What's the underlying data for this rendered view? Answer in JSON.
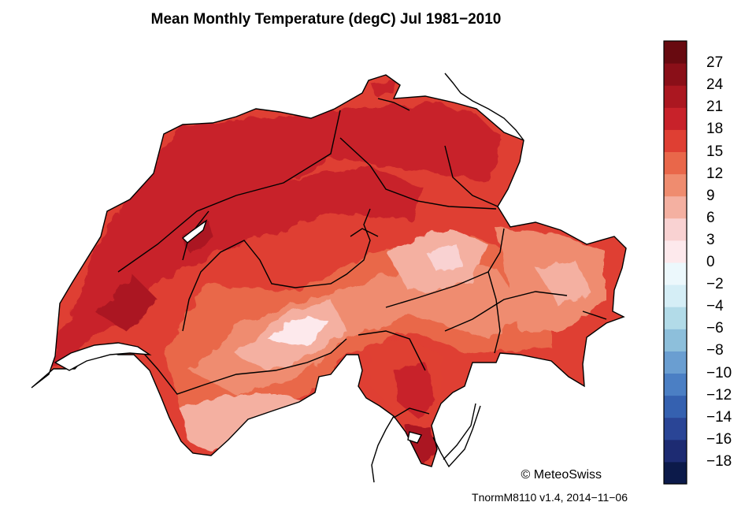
{
  "title": "Mean Monthly Temperature (degC) Jul 1981−2010",
  "colorbar": {
    "colors": [
      "#0c1a4a",
      "#1d2b72",
      "#2a4596",
      "#3561b0",
      "#4b7fc4",
      "#6a9ed1",
      "#8dbfdb",
      "#b2dbe8",
      "#d5eef6",
      "#ecf8fc",
      "#fde9ec",
      "#f9d2d2",
      "#f4b0a1",
      "#ef8c6f",
      "#e9674a",
      "#df3f33",
      "#c8222a",
      "#ab1720",
      "#8a0f18",
      "#680a10"
    ],
    "tick_labels": [
      "27",
      "24",
      "21",
      "18",
      "15",
      "12",
      "9",
      "6",
      "3",
      "0",
      "−2",
      "−4",
      "−6",
      "−8",
      "−10",
      "−12",
      "−14",
      "−16",
      "−18"
    ]
  },
  "copyright": "© MeteoSwiss",
  "version": "TnormM8110 v1.4, 2014−11−06"
}
